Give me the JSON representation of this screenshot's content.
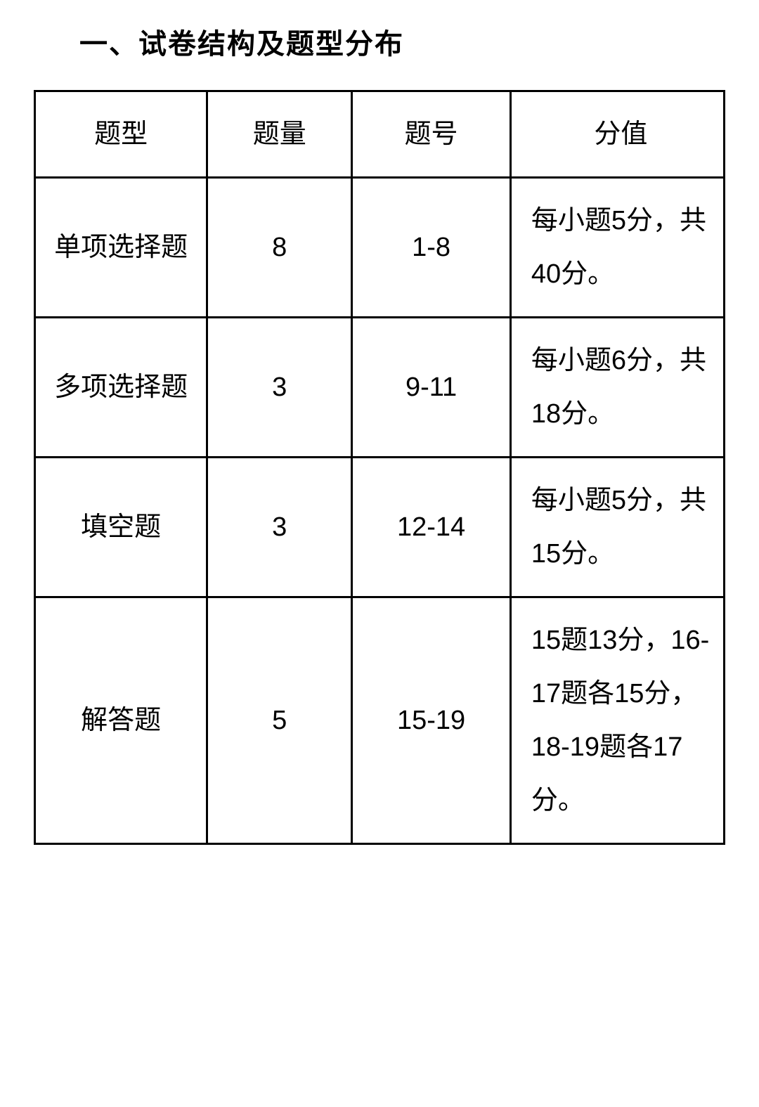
{
  "title": "一、试卷结构及题型分布",
  "table": {
    "columns": [
      "题型",
      "题量",
      "题号",
      "分值"
    ],
    "rows": [
      {
        "type": "单项选择题",
        "count": "8",
        "number": "1-8",
        "score": "每小题5分，共40分。"
      },
      {
        "type": "多项选择题",
        "count": "3",
        "number": "9-11",
        "score": "每小题6分，共18分。"
      },
      {
        "type": "填空题",
        "count": "3",
        "number": "12-14",
        "score": "每小题5分，共15分。"
      },
      {
        "type": "解答题",
        "count": "5",
        "number": "15-19",
        "score": "15题13分，16-17题各15分，18-19题各17分。"
      }
    ],
    "border_color": "#000000",
    "border_width": 3,
    "background_color": "#ffffff",
    "text_color": "#000000",
    "header_fontsize": 38,
    "cell_fontsize": 38,
    "title_fontsize": 40,
    "title_fontweight": 700
  }
}
